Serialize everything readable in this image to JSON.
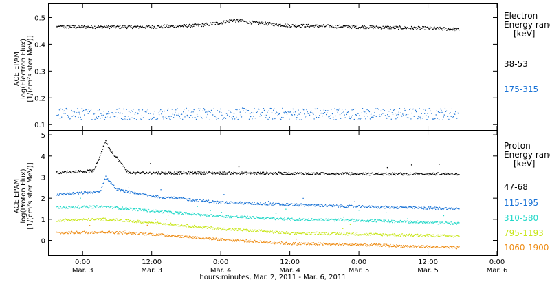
{
  "xaxis": {
    "title": "hours:minutes, Mar. 2, 2011 - Mar. 6, 2011",
    "time_range": [
      "2011-03-02T18:00",
      "2011-03-06T00:00"
    ],
    "ticks": [
      {
        "t": "2011-03-03T00:00",
        "time": "0:00",
        "date": "Mar. 3"
      },
      {
        "t": "2011-03-03T12:00",
        "time": "12:00",
        "date": "Mar. 3"
      },
      {
        "t": "2011-03-04T00:00",
        "time": "0:00",
        "date": "Mar. 4"
      },
      {
        "t": "2011-03-04T12:00",
        "time": "12:00",
        "date": "Mar. 4"
      },
      {
        "t": "2011-03-05T00:00",
        "time": "0:00",
        "date": "Mar. 5"
      },
      {
        "t": "2011-03-05T12:00",
        "time": "12:00",
        "date": "Mar. 5"
      },
      {
        "t": "2011-03-06T00:00",
        "time": "0:00",
        "date": "Mar. 6"
      }
    ]
  },
  "colors": {
    "black": "#000000",
    "blue": "#1a73d6",
    "cyan": "#22d8c8",
    "yellow": "#c8e619",
    "orange": "#ee8c14"
  },
  "chart_data": [
    {
      "type": "scatter",
      "ylabel_lines": [
        "ACE EPAM",
        "log(Electron Flux)",
        "[1/(cm²s ster MeV)]"
      ],
      "ylim": [
        0.08,
        0.55
      ],
      "yticks": [
        0.1,
        0.2,
        0.3,
        0.4,
        0.5
      ],
      "ytick_labels": [
        "0.1",
        "0.2",
        "0.3",
        "0.4",
        "0.5"
      ],
      "legend_title": [
        "Electron",
        "Energy ranges",
        "[keV]"
      ],
      "series": [
        {
          "name": "38-53",
          "color": "black",
          "points": [
            [
              "2011-03-02T18:00",
              0.465
            ],
            [
              "2011-03-03T00:00",
              0.465
            ],
            [
              "2011-03-03T12:00",
              0.465
            ],
            [
              "2011-03-03T20:00",
              0.47
            ],
            [
              "2011-03-04T00:00",
              0.48
            ],
            [
              "2011-03-04T02:00",
              0.49
            ],
            [
              "2011-03-04T06:00",
              0.48
            ],
            [
              "2011-03-04T12:00",
              0.47
            ],
            [
              "2011-03-05T00:00",
              0.465
            ],
            [
              "2011-03-05T12:00",
              0.46
            ],
            [
              "2011-03-05T18:00",
              0.455
            ]
          ]
        },
        {
          "name": "175-315",
          "color": "blue",
          "points": [
            [
              "2011-03-02T18:00",
              0.14
            ],
            [
              "2011-03-03T12:00",
              0.14
            ],
            [
              "2011-03-04T12:00",
              0.14
            ],
            [
              "2011-03-05T18:00",
              0.14
            ]
          ]
        }
      ]
    },
    {
      "type": "scatter",
      "ylabel_lines": [
        "ACE EPAM",
        "log(Proton Flux)",
        "[1/(cm²s ster MeV)]"
      ],
      "ylim": [
        -0.7,
        5.2
      ],
      "yticks": [
        0,
        1,
        2,
        3,
        4,
        5
      ],
      "ytick_labels": [
        "0",
        "1",
        "2",
        "3",
        "4",
        "5"
      ],
      "legend_title": [
        "Proton",
        "Energy ranges",
        "[keV]"
      ],
      "series": [
        {
          "name": "47-68",
          "color": "black",
          "points": [
            [
              "2011-03-02T18:00",
              3.2
            ],
            [
              "2011-03-03T02:00",
              3.3
            ],
            [
              "2011-03-03T04:00",
              4.7
            ],
            [
              "2011-03-03T05:00",
              4.2
            ],
            [
              "2011-03-03T06:00",
              3.9
            ],
            [
              "2011-03-03T08:00",
              3.2
            ],
            [
              "2011-03-04T00:00",
              3.2
            ],
            [
              "2011-03-05T00:00",
              3.15
            ],
            [
              "2011-03-05T18:00",
              3.15
            ]
          ]
        },
        {
          "name": "115-195",
          "color": "blue",
          "points": [
            [
              "2011-03-02T18:00",
              2.15
            ],
            [
              "2011-03-03T03:00",
              2.3
            ],
            [
              "2011-03-03T04:00",
              3.0
            ],
            [
              "2011-03-03T06:00",
              2.4
            ],
            [
              "2011-03-03T12:00",
              2.1
            ],
            [
              "2011-03-04T00:00",
              1.8
            ],
            [
              "2011-03-04T12:00",
              1.7
            ],
            [
              "2011-03-05T00:00",
              1.6
            ],
            [
              "2011-03-05T18:00",
              1.5
            ]
          ]
        },
        {
          "name": "310-580",
          "color": "cyan",
          "points": [
            [
              "2011-03-02T18:00",
              1.55
            ],
            [
              "2011-03-03T04:00",
              1.6
            ],
            [
              "2011-03-03T12:00",
              1.4
            ],
            [
              "2011-03-04T00:00",
              1.15
            ],
            [
              "2011-03-04T12:00",
              1.0
            ],
            [
              "2011-03-05T00:00",
              0.95
            ],
            [
              "2011-03-05T18:00",
              0.8
            ]
          ]
        },
        {
          "name": "795-1193",
          "color": "yellow",
          "points": [
            [
              "2011-03-02T18:00",
              0.95
            ],
            [
              "2011-03-03T04:00",
              1.0
            ],
            [
              "2011-03-03T12:00",
              0.85
            ],
            [
              "2011-03-04T00:00",
              0.55
            ],
            [
              "2011-03-04T12:00",
              0.35
            ],
            [
              "2011-03-05T00:00",
              0.3
            ],
            [
              "2011-03-05T18:00",
              0.2
            ]
          ]
        },
        {
          "name": "1060-1900",
          "color": "orange",
          "points": [
            [
              "2011-03-02T18:00",
              0.35
            ],
            [
              "2011-03-03T04:00",
              0.4
            ],
            [
              "2011-03-03T12:00",
              0.3
            ],
            [
              "2011-03-04T00:00",
              0.05
            ],
            [
              "2011-03-04T12:00",
              -0.15
            ],
            [
              "2011-03-05T00:00",
              -0.2
            ],
            [
              "2011-03-05T18:00",
              -0.35
            ]
          ]
        }
      ]
    }
  ]
}
